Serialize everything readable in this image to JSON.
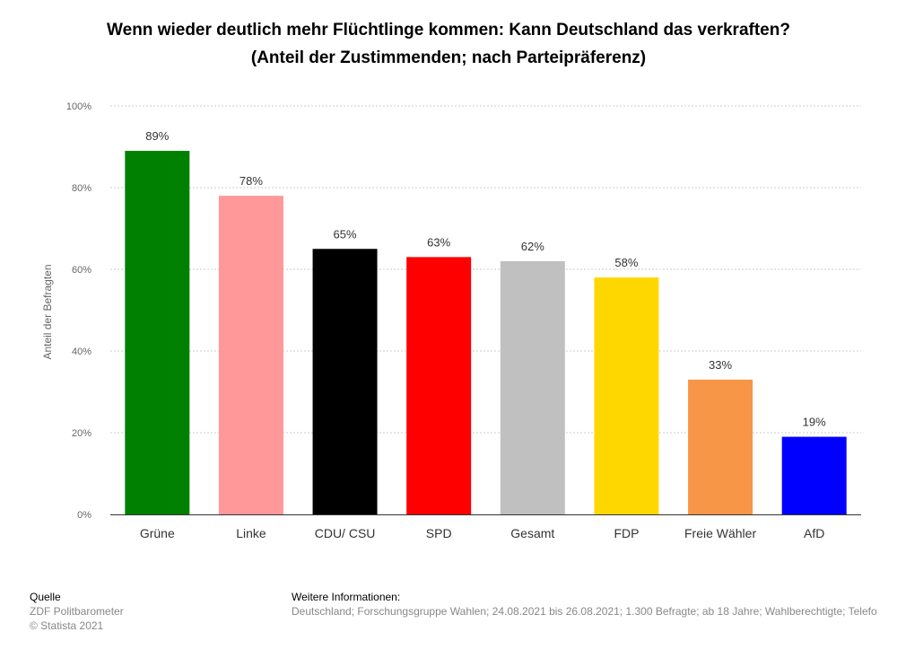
{
  "chart_data": {
    "type": "bar",
    "title_line1": "Wenn wieder deutlich mehr Flüchtlinge kommen: Kann Deutschland das verkraften?",
    "title_line2": "(Anteil der Zustimmenden; nach Parteipräferenz)",
    "ylabel": "Anteil der Befragten",
    "xlabel": "",
    "ylim": [
      0,
      100
    ],
    "yticks": [
      "0%",
      "20%",
      "40%",
      "60%",
      "80%",
      "100%"
    ],
    "ytick_values": [
      0,
      20,
      40,
      60,
      80,
      100
    ],
    "grid": true,
    "categories": [
      "Grüne",
      "Linke",
      "CDU/ CSU",
      "SPD",
      "Gesamt",
      "FDP",
      "Freie Wähler",
      "AfD"
    ],
    "values": [
      89,
      78,
      65,
      63,
      62,
      58,
      33,
      19
    ],
    "data_labels": [
      "89%",
      "78%",
      "65%",
      "63%",
      "62%",
      "58%",
      "33%",
      "19%"
    ],
    "colors": [
      "#008000",
      "#ff9999",
      "#000000",
      "#ff0000",
      "#c0c0c0",
      "#ffd700",
      "#f79646",
      "#0000ff"
    ]
  },
  "footer": {
    "source_heading": "Quelle",
    "source_line1": "ZDF Politbarometer",
    "source_line2": "© Statista 2021",
    "info_heading": "Weitere Informationen:",
    "info_text": "Deutschland; Forschungsgruppe Wahlen; 24.08.2021 bis 26.08.2021; 1.300 Befragte; ab 18 Jahre; Wahlberechtigte; Telefo"
  }
}
